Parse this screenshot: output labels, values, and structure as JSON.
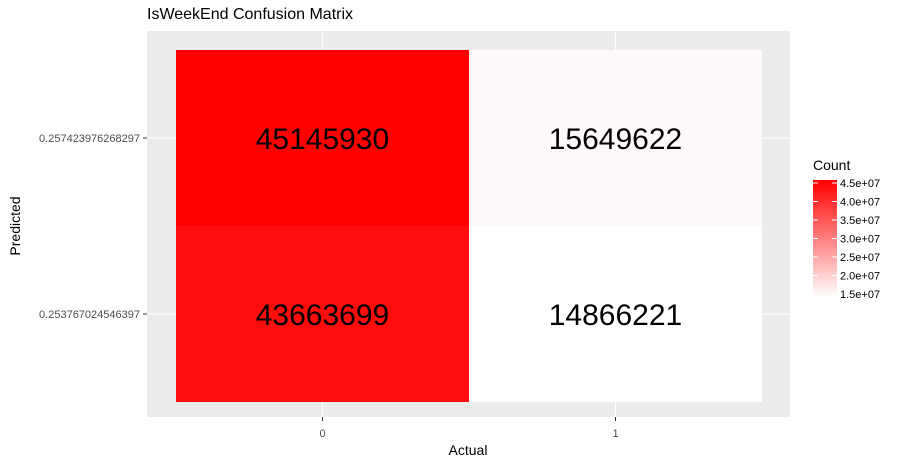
{
  "chart_data": {
    "type": "heatmap",
    "title": "IsWeekEnd Confusion Matrix",
    "xlabel": "Actual",
    "ylabel": "Predicted",
    "x_categories": [
      "0",
      "1"
    ],
    "y_categories": [
      "0.253767024546397",
      "0.257423976268297"
    ],
    "cells": [
      {
        "x": "0",
        "y": "0.257423976268297",
        "value": 45145930
      },
      {
        "x": "1",
        "y": "0.257423976268297",
        "value": 15649622
      },
      {
        "x": "0",
        "y": "0.253767024546397",
        "value": 43663699
      },
      {
        "x": "1",
        "y": "0.253767024546397",
        "value": 14866221
      }
    ],
    "legend": {
      "title": "Count",
      "position": "right",
      "ticks": [
        "1.5e+07",
        "2.0e+07",
        "2.5e+07",
        "3.0e+07",
        "3.5e+07",
        "4.0e+07",
        "4.5e+07"
      ],
      "tick_values": [
        15000000,
        20000000,
        25000000,
        30000000,
        35000000,
        40000000,
        45000000
      ],
      "low_color": "#ffffff",
      "high_color": "#ff0000"
    },
    "panel_background": "#ebebeb",
    "grid": true
  }
}
